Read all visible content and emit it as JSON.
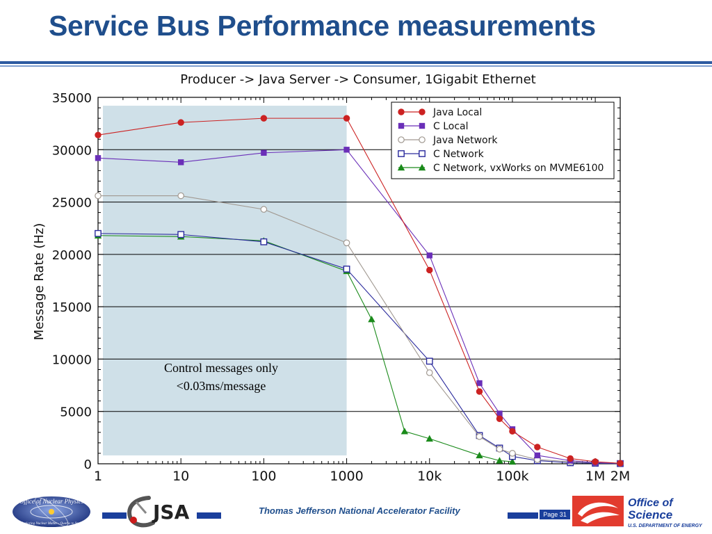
{
  "slide": {
    "title": "Service Bus Performance measurements",
    "facility": "Thomas Jefferson National Accelerator Facility",
    "page": "Page 31"
  },
  "logos": {
    "nuclear_physics_top": "Office of Nuclear Physics",
    "nuclear_physics_ring": "Exploring Nuclear Matter - Quarks to Stars",
    "jsa": "JSA",
    "science_line1": "Office of",
    "science_line2": "Science",
    "science_line3": "U.S. DEPARTMENT OF ENERGY"
  },
  "colors": {
    "title": "#1f4e8c",
    "shade": "#cfe0e8",
    "java_local": "#cc2222",
    "c_local": "#6a2fb8",
    "java_network": "#a09890",
    "c_network": "#2a2a9c",
    "c_network_vxworks": "#1a8a1a"
  },
  "chart_data": {
    "type": "line",
    "title": "Producer -> Java Server -> Consumer,   1Gigabit Ethernet",
    "xlabel": "",
    "ylabel": "Message Rate (Hz)",
    "x_scale": "log",
    "xlim": [
      1,
      2000000
    ],
    "ylim": [
      0,
      35000
    ],
    "x_ticks": [
      1,
      10,
      100,
      1000,
      10000,
      100000,
      1000000,
      2000000
    ],
    "x_tick_labels": [
      "1",
      "10",
      "100",
      "1000",
      "10k",
      "100k",
      "1M",
      "2M"
    ],
    "y_ticks": [
      0,
      5000,
      10000,
      15000,
      20000,
      25000,
      30000,
      35000
    ],
    "y_tick_labels": [
      "0",
      "5000",
      "10000",
      "15000",
      "20000",
      "25000",
      "30000",
      "35000"
    ],
    "grid": "horizontal",
    "legend_position": "top-right",
    "shaded_region": {
      "x_range": [
        1,
        1000
      ],
      "y_range": [
        800,
        34200
      ],
      "annotation_line1": "Control messages only",
      "annotation_line2": "<0.03ms/message"
    },
    "series": [
      {
        "name": "Java Local",
        "color": "#cc2222",
        "marker": "circle-filled",
        "points": [
          [
            1,
            31400
          ],
          [
            10,
            32600
          ],
          [
            100,
            33000
          ],
          [
            1000,
            33000
          ],
          [
            10000,
            18500
          ],
          [
            40000,
            6900
          ],
          [
            70000,
            4300
          ],
          [
            100000,
            3100
          ],
          [
            200000,
            1600
          ],
          [
            500000,
            500
          ],
          [
            1000000,
            200
          ],
          [
            2000000,
            50
          ]
        ]
      },
      {
        "name": "C Local",
        "color": "#6a2fb8",
        "marker": "square-filled",
        "points": [
          [
            1,
            29200
          ],
          [
            10,
            28800
          ],
          [
            100,
            29700
          ],
          [
            1000,
            30000
          ],
          [
            10000,
            19900
          ],
          [
            40000,
            7700
          ],
          [
            70000,
            4800
          ],
          [
            100000,
            3300
          ],
          [
            200000,
            800
          ],
          [
            500000,
            300
          ],
          [
            1000000,
            100
          ],
          [
            2000000,
            50
          ]
        ]
      },
      {
        "name": "Java Network",
        "color": "#a09890",
        "marker": "circle-open",
        "points": [
          [
            1,
            25600
          ],
          [
            10,
            25600
          ],
          [
            100,
            24300
          ],
          [
            1000,
            21100
          ],
          [
            10000,
            8700
          ],
          [
            40000,
            2600
          ],
          [
            70000,
            1400
          ],
          [
            100000,
            1000
          ],
          [
            200000,
            400
          ],
          [
            500000,
            200
          ],
          [
            1000000,
            100
          ],
          [
            2000000,
            50
          ]
        ]
      },
      {
        "name": "C Network",
        "color": "#2a2a9c",
        "marker": "square-open",
        "points": [
          [
            1,
            22000
          ],
          [
            10,
            21900
          ],
          [
            100,
            21200
          ],
          [
            1000,
            18600
          ],
          [
            10000,
            9800
          ],
          [
            40000,
            2700
          ],
          [
            70000,
            1500
          ],
          [
            100000,
            700
          ],
          [
            200000,
            300
          ],
          [
            500000,
            100
          ],
          [
            1000000,
            50
          ],
          [
            2000000,
            20
          ]
        ]
      },
      {
        "name": "C Network, vxWorks on MVME6100",
        "color": "#1a8a1a",
        "marker": "triangle-filled",
        "points": [
          [
            1,
            21800
          ],
          [
            10,
            21700
          ],
          [
            100,
            21300
          ],
          [
            1000,
            18400
          ],
          [
            2000,
            13800
          ],
          [
            5000,
            3100
          ],
          [
            10000,
            2400
          ],
          [
            40000,
            800
          ],
          [
            70000,
            300
          ],
          [
            100000,
            200
          ]
        ]
      }
    ]
  }
}
